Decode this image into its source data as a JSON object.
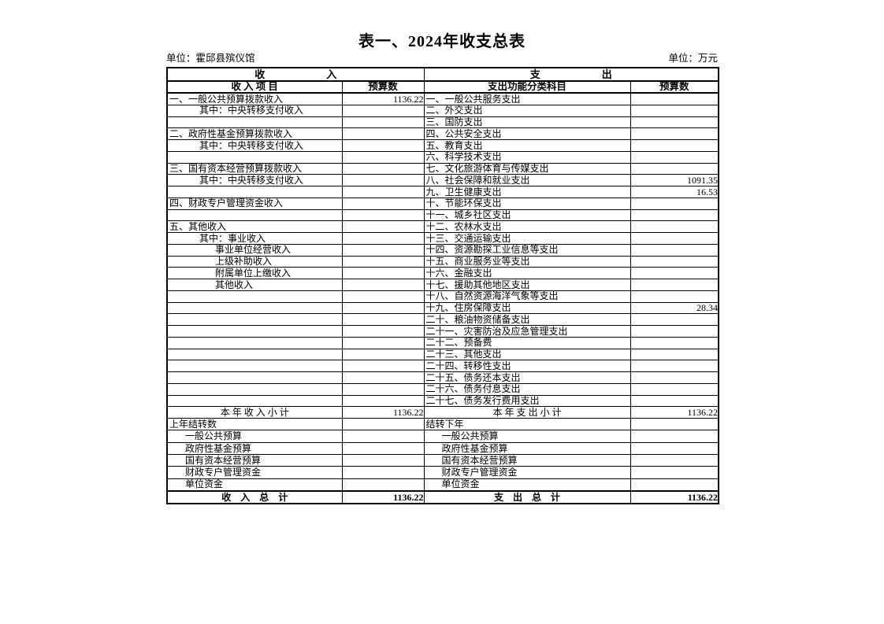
{
  "title": "表一、2024年收支总表",
  "unit_left": "单位：霍邱县殡仪馆",
  "unit_right": "单位：万元",
  "colors": {
    "background": "#ffffff",
    "text": "#000000",
    "border": "#000000"
  },
  "header": {
    "income_group": "收　　　　　　入",
    "expense_group": "支　　　　　　出",
    "income_item_col": "收 入 项 目",
    "income_budget_col": "预算数",
    "expense_item_col": "支出功能分类科目",
    "expense_budget_col": "预算数"
  },
  "rows": [
    {
      "kind": "item",
      "income": {
        "label": "一、一般公共预算拨款收入",
        "indent": 0,
        "value": "1136.22"
      },
      "expense": {
        "label": "一、一般公共服务支出",
        "indent": 0,
        "value": ""
      }
    },
    {
      "kind": "item",
      "income": {
        "label": "其中：中央转移支付收入",
        "indent": 1,
        "value": ""
      },
      "expense": {
        "label": "二、外交支出",
        "indent": 0,
        "value": ""
      }
    },
    {
      "kind": "item",
      "income": {
        "label": "",
        "indent": 0,
        "value": ""
      },
      "expense": {
        "label": "三、国防支出",
        "indent": 0,
        "value": ""
      }
    },
    {
      "kind": "item",
      "income": {
        "label": "二、政府性基金预算拨款收入",
        "indent": 0,
        "value": ""
      },
      "expense": {
        "label": "四、公共安全支出",
        "indent": 0,
        "value": ""
      }
    },
    {
      "kind": "item",
      "income": {
        "label": "其中：中央转移支付收入",
        "indent": 1,
        "value": ""
      },
      "expense": {
        "label": "五、教育支出",
        "indent": 0,
        "value": ""
      }
    },
    {
      "kind": "item",
      "income": {
        "label": "",
        "indent": 0,
        "value": ""
      },
      "expense": {
        "label": "六、科学技术支出",
        "indent": 0,
        "value": ""
      }
    },
    {
      "kind": "item",
      "income": {
        "label": "三、国有资本经营预算拨款收入",
        "indent": 0,
        "value": ""
      },
      "expense": {
        "label": "七、文化旅游体育与传媒支出",
        "indent": 0,
        "value": ""
      }
    },
    {
      "kind": "item",
      "income": {
        "label": "其中：中央转移支付收入",
        "indent": 1,
        "value": ""
      },
      "expense": {
        "label": "八、社会保障和就业支出",
        "indent": 0,
        "value": "1091.35"
      }
    },
    {
      "kind": "item",
      "income": {
        "label": "",
        "indent": 0,
        "value": ""
      },
      "expense": {
        "label": "九、卫生健康支出",
        "indent": 0,
        "value": "16.53"
      }
    },
    {
      "kind": "item",
      "income": {
        "label": "四、财政专户管理资金收入",
        "indent": 0,
        "value": ""
      },
      "expense": {
        "label": "十、节能环保支出",
        "indent": 0,
        "value": ""
      }
    },
    {
      "kind": "item",
      "income": {
        "label": "",
        "indent": 0,
        "value": ""
      },
      "expense": {
        "label": "十一、城乡社区支出",
        "indent": 0,
        "value": ""
      }
    },
    {
      "kind": "item",
      "income": {
        "label": "五、其他收入",
        "indent": 0,
        "value": ""
      },
      "expense": {
        "label": "十二、农林水支出",
        "indent": 0,
        "value": ""
      }
    },
    {
      "kind": "item",
      "income": {
        "label": "其中：事业收入",
        "indent": 1,
        "value": ""
      },
      "expense": {
        "label": "十三、交通运输支出",
        "indent": 0,
        "value": ""
      }
    },
    {
      "kind": "item",
      "income": {
        "label": "事业单位经营收入",
        "indent": 2,
        "value": ""
      },
      "expense": {
        "label": "十四、资源勘探工业信息等支出",
        "indent": 0,
        "value": ""
      }
    },
    {
      "kind": "item",
      "income": {
        "label": "上级补助收入",
        "indent": 2,
        "value": ""
      },
      "expense": {
        "label": "十五、商业服务业等支出",
        "indent": 0,
        "value": ""
      }
    },
    {
      "kind": "item",
      "income": {
        "label": "附属单位上缴收入",
        "indent": 2,
        "value": ""
      },
      "expense": {
        "label": "十六、金融支出",
        "indent": 0,
        "value": ""
      }
    },
    {
      "kind": "item",
      "income": {
        "label": "其他收入",
        "indent": 2,
        "value": ""
      },
      "expense": {
        "label": "十七、援助其他地区支出",
        "indent": 0,
        "value": ""
      }
    },
    {
      "kind": "item",
      "income": {
        "label": "",
        "indent": 0,
        "value": ""
      },
      "expense": {
        "label": "十八、自然资源海洋气象等支出",
        "indent": 0,
        "value": ""
      }
    },
    {
      "kind": "item",
      "income": {
        "label": "",
        "indent": 0,
        "value": ""
      },
      "expense": {
        "label": "十九、住房保障支出",
        "indent": 0,
        "value": "28.34"
      }
    },
    {
      "kind": "item",
      "income": {
        "label": "",
        "indent": 0,
        "value": ""
      },
      "expense": {
        "label": "二十、粮油物资储备支出",
        "indent": 0,
        "value": ""
      }
    },
    {
      "kind": "item",
      "income": {
        "label": "",
        "indent": 0,
        "value": ""
      },
      "expense": {
        "label": "二十一、灾害防治及应急管理支出",
        "indent": 0,
        "value": ""
      }
    },
    {
      "kind": "item",
      "income": {
        "label": "",
        "indent": 0,
        "value": ""
      },
      "expense": {
        "label": "二十二、预备费",
        "indent": 0,
        "value": ""
      }
    },
    {
      "kind": "item",
      "income": {
        "label": "",
        "indent": 0,
        "value": ""
      },
      "expense": {
        "label": "二十三、其他支出",
        "indent": 0,
        "value": ""
      }
    },
    {
      "kind": "item",
      "income": {
        "label": "",
        "indent": 0,
        "value": ""
      },
      "expense": {
        "label": "二十四、转移性支出",
        "indent": 0,
        "value": ""
      }
    },
    {
      "kind": "item",
      "income": {
        "label": "",
        "indent": 0,
        "value": ""
      },
      "expense": {
        "label": "二十五、债务还本支出",
        "indent": 0,
        "value": ""
      }
    },
    {
      "kind": "item",
      "income": {
        "label": "",
        "indent": 0,
        "value": ""
      },
      "expense": {
        "label": "二十六、债务付息支出",
        "indent": 0,
        "value": ""
      }
    },
    {
      "kind": "item",
      "income": {
        "label": "",
        "indent": 0,
        "value": ""
      },
      "expense": {
        "label": "二十七、债务发行费用支出",
        "indent": 0,
        "value": ""
      }
    },
    {
      "kind": "subtotal",
      "income": {
        "label": "本 年 收 入 小 计",
        "indent": 0,
        "value": "1136.22"
      },
      "expense": {
        "label": "本 年 支 出 小 计",
        "indent": 0,
        "value": "1136.22"
      }
    },
    {
      "kind": "carry",
      "income": {
        "label": "上年结转数",
        "indent": 0,
        "value": ""
      },
      "expense": {
        "label": "结转下年",
        "indent": 0,
        "value": ""
      }
    },
    {
      "kind": "carry",
      "income": {
        "label": "一般公共预算",
        "indent": 1,
        "value": ""
      },
      "expense": {
        "label": "一般公共预算",
        "indent": 1,
        "value": ""
      }
    },
    {
      "kind": "carry",
      "income": {
        "label": "政府性基金预算",
        "indent": 1,
        "value": ""
      },
      "expense": {
        "label": "政府性基金预算",
        "indent": 1,
        "value": ""
      }
    },
    {
      "kind": "carry",
      "income": {
        "label": "国有资本经营预算",
        "indent": 1,
        "value": ""
      },
      "expense": {
        "label": "国有资本经营预算",
        "indent": 1,
        "value": ""
      }
    },
    {
      "kind": "carry",
      "income": {
        "label": "财政专户管理资金",
        "indent": 1,
        "value": ""
      },
      "expense": {
        "label": "财政专户管理资金",
        "indent": 1,
        "value": ""
      }
    },
    {
      "kind": "carry",
      "income": {
        "label": "单位资金",
        "indent": 1,
        "value": ""
      },
      "expense": {
        "label": "单位资金",
        "indent": 1,
        "value": ""
      }
    },
    {
      "kind": "total",
      "income": {
        "label": "收　入　总　计",
        "indent": 0,
        "value": "1136.22"
      },
      "expense": {
        "label": "支　出　总　计",
        "indent": 0,
        "value": "1136.22"
      }
    }
  ]
}
